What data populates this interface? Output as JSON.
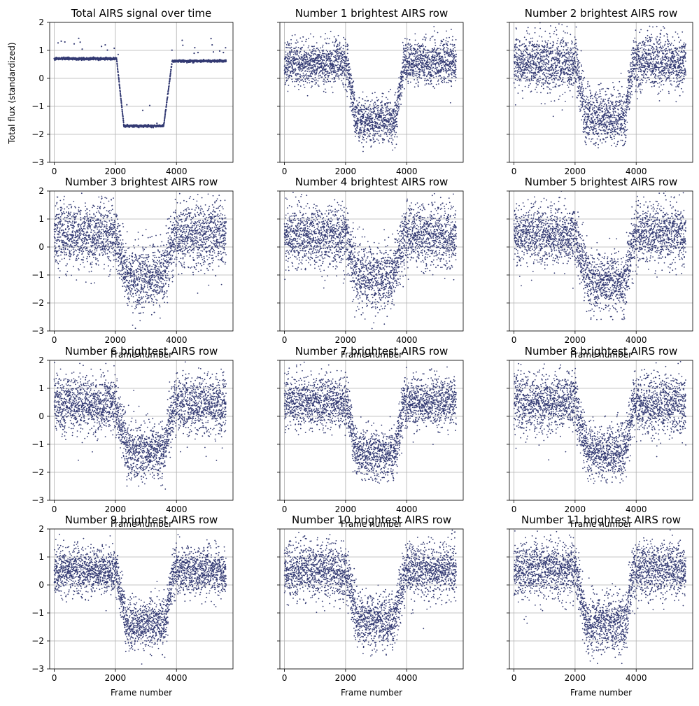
{
  "figure": {
    "ylabel": "Total flux (standardized)",
    "xlabel": "Frame number"
  },
  "chart_data": [
    {
      "type": "scatter",
      "title": "Total AIRS signal over time",
      "xlabel": "",
      "ylabel": "Total flux (standardized)",
      "xlim": [
        -150,
        5850
      ],
      "ylim": [
        -3,
        2
      ],
      "xticks": [
        0,
        2000,
        4000
      ],
      "yticks": [
        2,
        1,
        0,
        -1,
        -2,
        -3
      ],
      "grid": true,
      "color": "#333a73",
      "profile": {
        "n_frames": 5625,
        "ingress": [
          2040,
          2280
        ],
        "egress": [
          3580,
          3860
        ],
        "baseline": [
          0.7,
          0.62
        ],
        "transit_level": -1.7,
        "noise": 0.02
      }
    },
    {
      "type": "scatter",
      "title": "Number 1 brightest AIRS row",
      "xlabel": "",
      "ylabel": "",
      "xlim": [
        -150,
        5850
      ],
      "ylim": [
        -3,
        2
      ],
      "xticks": [
        0,
        2000,
        4000
      ],
      "yticks": [
        2,
        1,
        0,
        -1,
        -2,
        -3
      ],
      "grid": true,
      "color": "#333a73",
      "profile": {
        "n_frames": 5625,
        "ingress": [
          2040,
          2350
        ],
        "egress": [
          3650,
          3900
        ],
        "baseline": [
          0.55,
          0.55
        ],
        "transit_level": -1.5,
        "noise": 0.38
      }
    },
    {
      "type": "scatter",
      "title": "Number 2 brightest AIRS row",
      "xlabel": "",
      "ylabel": "",
      "xlim": [
        -150,
        5850
      ],
      "ylim": [
        -3,
        2
      ],
      "xticks": [
        0,
        2000,
        4000
      ],
      "yticks": [
        2,
        1,
        0,
        -1,
        -2,
        -3
      ],
      "grid": true,
      "color": "#333a73",
      "profile": {
        "n_frames": 5625,
        "ingress": [
          2040,
          2350
        ],
        "egress": [
          3650,
          3900
        ],
        "baseline": [
          0.55,
          0.55
        ],
        "transit_level": -1.4,
        "noise": 0.48
      }
    },
    {
      "type": "scatter",
      "title": "Number 3 brightest AIRS row",
      "xlabel": "Frame number",
      "ylabel": "",
      "xlim": [
        -150,
        5850
      ],
      "ylim": [
        -3,
        2
      ],
      "xticks": [
        0,
        2000,
        4000
      ],
      "yticks": [
        2,
        1,
        0,
        -1,
        -2,
        -3
      ],
      "grid": true,
      "color": "#333a73",
      "profile": {
        "n_frames": 5625,
        "ingress": [
          2000,
          2400
        ],
        "egress": [
          3550,
          3950
        ],
        "baseline": [
          0.4,
          0.4
        ],
        "transit_level": -1.1,
        "noise": 0.58
      }
    },
    {
      "type": "scatter",
      "title": "Number 4 brightest AIRS row",
      "xlabel": "Frame number",
      "ylabel": "",
      "xlim": [
        -150,
        5850
      ],
      "ylim": [
        -3,
        2
      ],
      "xticks": [
        0,
        2000,
        4000
      ],
      "yticks": [
        2,
        1,
        0,
        -1,
        -2,
        -3
      ],
      "grid": true,
      "color": "#333a73",
      "profile": {
        "n_frames": 5625,
        "ingress": [
          2000,
          2400
        ],
        "egress": [
          3550,
          3950
        ],
        "baseline": [
          0.4,
          0.4
        ],
        "transit_level": -1.1,
        "noise": 0.56
      }
    },
    {
      "type": "scatter",
      "title": "Number 5 brightest AIRS row",
      "xlabel": "Frame number",
      "ylabel": "",
      "xlim": [
        -150,
        5850
      ],
      "ylim": [
        -3,
        2
      ],
      "xticks": [
        0,
        2000,
        4000
      ],
      "yticks": [
        2,
        1,
        0,
        -1,
        -2,
        -3
      ],
      "grid": true,
      "color": "#333a73",
      "profile": {
        "n_frames": 5625,
        "ingress": [
          2000,
          2400
        ],
        "egress": [
          3600,
          3950
        ],
        "baseline": [
          0.45,
          0.45
        ],
        "transit_level": -1.25,
        "noise": 0.52
      }
    },
    {
      "type": "scatter",
      "title": "Number 6 brightest AIRS row",
      "xlabel": "Frame number",
      "ylabel": "",
      "xlim": [
        -150,
        5850
      ],
      "ylim": [
        -3,
        2
      ],
      "xticks": [
        0,
        2000,
        4000
      ],
      "yticks": [
        2,
        1,
        0,
        -1,
        -2,
        -3
      ],
      "grid": true,
      "color": "#333a73",
      "profile": {
        "n_frames": 5625,
        "ingress": [
          2000,
          2400
        ],
        "egress": [
          3600,
          3950
        ],
        "baseline": [
          0.45,
          0.4
        ],
        "transit_level": -1.25,
        "noise": 0.52
      }
    },
    {
      "type": "scatter",
      "title": "Number 7 brightest AIRS row",
      "xlabel": "Frame number",
      "ylabel": "",
      "xlim": [
        -150,
        5850
      ],
      "ylim": [
        -3,
        2
      ],
      "xticks": [
        0,
        2000,
        4000
      ],
      "yticks": [
        2,
        1,
        0,
        -1,
        -2,
        -3
      ],
      "grid": true,
      "color": "#333a73",
      "profile": {
        "n_frames": 5625,
        "ingress": [
          2040,
          2350
        ],
        "egress": [
          3650,
          3900
        ],
        "baseline": [
          0.5,
          0.5
        ],
        "transit_level": -1.35,
        "noise": 0.45
      }
    },
    {
      "type": "scatter",
      "title": "Number 8 brightest AIRS row",
      "xlabel": "Frame number",
      "ylabel": "",
      "xlim": [
        -150,
        5850
      ],
      "ylim": [
        -3,
        2
      ],
      "xticks": [
        0,
        2000,
        4000
      ],
      "yticks": [
        2,
        1,
        0,
        -1,
        -2,
        -3
      ],
      "grid": true,
      "color": "#333a73",
      "profile": {
        "n_frames": 5625,
        "ingress": [
          2000,
          2400
        ],
        "egress": [
          3600,
          3950
        ],
        "baseline": [
          0.5,
          0.45
        ],
        "transit_level": -1.3,
        "noise": 0.5
      }
    },
    {
      "type": "scatter",
      "title": "Number 9 brightest AIRS row",
      "xlabel": "Frame number",
      "ylabel": "",
      "xlim": [
        -150,
        5850
      ],
      "ylim": [
        -3,
        2
      ],
      "xticks": [
        0,
        2000,
        4000
      ],
      "yticks": [
        2,
        1,
        0,
        -1,
        -2,
        -3
      ],
      "grid": true,
      "color": "#333a73",
      "profile": {
        "n_frames": 5625,
        "ingress": [
          2040,
          2350
        ],
        "egress": [
          3650,
          3900
        ],
        "baseline": [
          0.5,
          0.5
        ],
        "transit_level": -1.4,
        "noise": 0.42
      }
    },
    {
      "type": "scatter",
      "title": "Number 10 brightest AIRS row",
      "xlabel": "Frame number",
      "ylabel": "",
      "xlim": [
        -150,
        5850
      ],
      "ylim": [
        -3,
        2
      ],
      "xticks": [
        0,
        2000,
        4000
      ],
      "yticks": [
        2,
        1,
        0,
        -1,
        -2,
        -3
      ],
      "grid": true,
      "color": "#333a73",
      "profile": {
        "n_frames": 5625,
        "ingress": [
          2000,
          2400
        ],
        "egress": [
          3600,
          3950
        ],
        "baseline": [
          0.5,
          0.5
        ],
        "transit_level": -1.3,
        "noise": 0.48
      }
    },
    {
      "type": "scatter",
      "title": "Number 11 brightest AIRS row",
      "xlabel": "Frame number",
      "ylabel": "",
      "xlim": [
        -150,
        5850
      ],
      "ylim": [
        -3,
        2
      ],
      "xticks": [
        0,
        2000,
        4000
      ],
      "yticks": [
        2,
        1,
        0,
        -1,
        -2,
        -3
      ],
      "grid": true,
      "color": "#333a73",
      "profile": {
        "n_frames": 5625,
        "ingress": [
          2040,
          2350
        ],
        "egress": [
          3650,
          3900
        ],
        "baseline": [
          0.55,
          0.55
        ],
        "transit_level": -1.4,
        "noise": 0.5
      }
    }
  ]
}
